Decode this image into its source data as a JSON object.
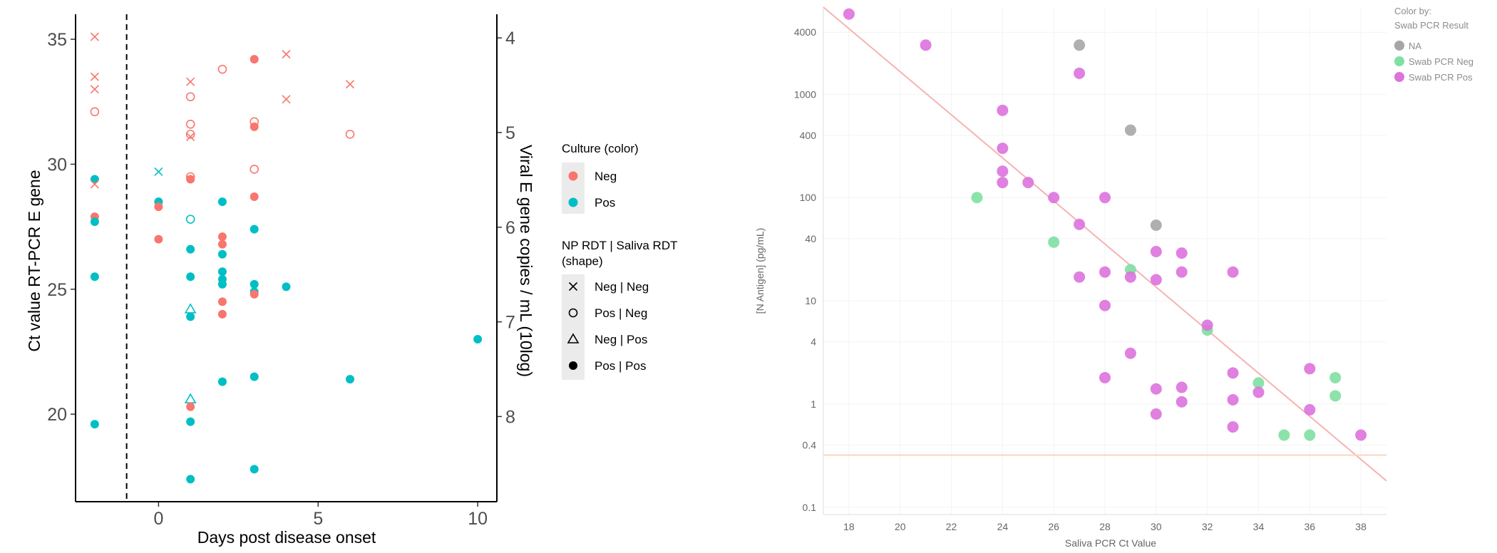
{
  "chart_data": [
    {
      "type": "scatter",
      "title": "",
      "xlabel": "Days post disease onset",
      "ylabel": "Ct value RT-PCR E gene",
      "y2label": "Viral E gene copies / mL (10log)",
      "xlim": [
        -2.6,
        10.6
      ],
      "ylim": [
        16.5,
        36
      ],
      "y2lim": [
        3.75,
        8.9
      ],
      "x_ticks": [
        "0",
        "5",
        "10"
      ],
      "x_tick_values": [
        0,
        5,
        10
      ],
      "y_ticks": [
        "20",
        "25",
        "30",
        "35"
      ],
      "y_tick_values": [
        20,
        25,
        30,
        35
      ],
      "y2_ticks": [
        "4",
        "5",
        "6",
        "7",
        "8"
      ],
      "y2_tick_values": [
        4,
        5,
        6,
        7,
        8
      ],
      "reference_line": {
        "x": -1,
        "style": "dashed"
      },
      "grid": false,
      "legend_position": "right",
      "colors": {
        "Neg": "#f8766d",
        "Pos": "#00bfc4"
      },
      "legend": {
        "color_title": "Culture (color)",
        "color_items": [
          {
            "label": "Neg",
            "color": "#f8766d"
          },
          {
            "label": "Pos",
            "color": "#00bfc4"
          }
        ],
        "shape_title_line1": "NP RDT | Saliva RDT",
        "shape_title_line2": "(shape)",
        "shape_items": [
          {
            "label": "Neg | Neg",
            "shape": "cross"
          },
          {
            "label": "Pos | Neg",
            "shape": "circle-open"
          },
          {
            "label": "Neg | Pos",
            "shape": "triangle-open"
          },
          {
            "label": "Pos | Pos",
            "shape": "circle-filled"
          }
        ]
      },
      "points": [
        {
          "x": -2,
          "y": 35.1,
          "culture": "Neg",
          "shape": "cross"
        },
        {
          "x": -2,
          "y": 33.5,
          "culture": "Neg",
          "shape": "cross"
        },
        {
          "x": -2,
          "y": 33.0,
          "culture": "Neg",
          "shape": "cross"
        },
        {
          "x": -2,
          "y": 32.1,
          "culture": "Neg",
          "shape": "circle-open"
        },
        {
          "x": -2,
          "y": 29.4,
          "culture": "Pos",
          "shape": "circle-filled"
        },
        {
          "x": -2,
          "y": 29.2,
          "culture": "Neg",
          "shape": "cross"
        },
        {
          "x": -2,
          "y": 27.9,
          "culture": "Neg",
          "shape": "circle-filled"
        },
        {
          "x": -2,
          "y": 27.7,
          "culture": "Pos",
          "shape": "circle-filled"
        },
        {
          "x": -2,
          "y": 25.5,
          "culture": "Pos",
          "shape": "circle-filled"
        },
        {
          "x": -2,
          "y": 19.6,
          "culture": "Pos",
          "shape": "circle-filled"
        },
        {
          "x": 0,
          "y": 29.7,
          "culture": "Pos",
          "shape": "cross"
        },
        {
          "x": 0,
          "y": 28.5,
          "culture": "Pos",
          "shape": "circle-filled"
        },
        {
          "x": 0,
          "y": 28.3,
          "culture": "Neg",
          "shape": "circle-filled"
        },
        {
          "x": 0,
          "y": 27.0,
          "culture": "Neg",
          "shape": "circle-filled"
        },
        {
          "x": 1,
          "y": 33.3,
          "culture": "Neg",
          "shape": "cross"
        },
        {
          "x": 1,
          "y": 32.7,
          "culture": "Neg",
          "shape": "circle-open"
        },
        {
          "x": 1,
          "y": 31.6,
          "culture": "Neg",
          "shape": "circle-open"
        },
        {
          "x": 1,
          "y": 31.2,
          "culture": "Neg",
          "shape": "circle-open"
        },
        {
          "x": 1,
          "y": 31.1,
          "culture": "Neg",
          "shape": "cross"
        },
        {
          "x": 1,
          "y": 29.5,
          "culture": "Neg",
          "shape": "circle-open"
        },
        {
          "x": 1,
          "y": 29.4,
          "culture": "Neg",
          "shape": "circle-filled"
        },
        {
          "x": 1,
          "y": 27.8,
          "culture": "Pos",
          "shape": "circle-open"
        },
        {
          "x": 1,
          "y": 26.6,
          "culture": "Pos",
          "shape": "circle-filled"
        },
        {
          "x": 1,
          "y": 25.5,
          "culture": "Pos",
          "shape": "circle-filled"
        },
        {
          "x": 1,
          "y": 24.2,
          "culture": "Pos",
          "shape": "triangle-open"
        },
        {
          "x": 1,
          "y": 23.9,
          "culture": "Pos",
          "shape": "circle-filled"
        },
        {
          "x": 1,
          "y": 20.6,
          "culture": "Pos",
          "shape": "triangle-open"
        },
        {
          "x": 1,
          "y": 20.3,
          "culture": "Neg",
          "shape": "circle-filled"
        },
        {
          "x": 1,
          "y": 19.7,
          "culture": "Pos",
          "shape": "circle-filled"
        },
        {
          "x": 1,
          "y": 17.4,
          "culture": "Pos",
          "shape": "circle-filled"
        },
        {
          "x": 2,
          "y": 33.8,
          "culture": "Neg",
          "shape": "circle-open"
        },
        {
          "x": 2,
          "y": 28.5,
          "culture": "Pos",
          "shape": "circle-filled"
        },
        {
          "x": 2,
          "y": 27.1,
          "culture": "Neg",
          "shape": "circle-filled"
        },
        {
          "x": 2,
          "y": 26.8,
          "culture": "Neg",
          "shape": "circle-filled"
        },
        {
          "x": 2,
          "y": 26.4,
          "culture": "Pos",
          "shape": "circle-filled"
        },
        {
          "x": 2,
          "y": 25.7,
          "culture": "Pos",
          "shape": "circle-filled"
        },
        {
          "x": 2,
          "y": 25.4,
          "culture": "Pos",
          "shape": "circle-filled"
        },
        {
          "x": 2,
          "y": 25.2,
          "culture": "Pos",
          "shape": "circle-filled"
        },
        {
          "x": 2,
          "y": 24.5,
          "culture": "Neg",
          "shape": "circle-filled"
        },
        {
          "x": 2,
          "y": 24.0,
          "culture": "Neg",
          "shape": "circle-filled"
        },
        {
          "x": 2,
          "y": 21.3,
          "culture": "Pos",
          "shape": "circle-filled"
        },
        {
          "x": 3,
          "y": 34.2,
          "culture": "Neg",
          "shape": "circle-filled"
        },
        {
          "x": 3,
          "y": 31.7,
          "culture": "Neg",
          "shape": "circle-open"
        },
        {
          "x": 3,
          "y": 31.5,
          "culture": "Neg",
          "shape": "circle-filled"
        },
        {
          "x": 3,
          "y": 29.8,
          "culture": "Neg",
          "shape": "circle-open"
        },
        {
          "x": 3,
          "y": 28.7,
          "culture": "Neg",
          "shape": "circle-filled"
        },
        {
          "x": 3,
          "y": 27.4,
          "culture": "Pos",
          "shape": "circle-filled"
        },
        {
          "x": 3,
          "y": 25.2,
          "culture": "Pos",
          "shape": "circle-filled"
        },
        {
          "x": 3,
          "y": 24.9,
          "culture": "Pos",
          "shape": "circle-filled"
        },
        {
          "x": 3,
          "y": 24.8,
          "culture": "Neg",
          "shape": "circle-filled"
        },
        {
          "x": 3,
          "y": 21.5,
          "culture": "Pos",
          "shape": "circle-filled"
        },
        {
          "x": 3,
          "y": 17.8,
          "culture": "Pos",
          "shape": "circle-filled"
        },
        {
          "x": 4,
          "y": 34.4,
          "culture": "Neg",
          "shape": "cross"
        },
        {
          "x": 4,
          "y": 32.6,
          "culture": "Neg",
          "shape": "cross"
        },
        {
          "x": 4,
          "y": 25.1,
          "culture": "Pos",
          "shape": "circle-filled"
        },
        {
          "x": 6,
          "y": 33.2,
          "culture": "Neg",
          "shape": "cross"
        },
        {
          "x": 6,
          "y": 31.2,
          "culture": "Neg",
          "shape": "circle-open"
        },
        {
          "x": 6,
          "y": 21.4,
          "culture": "Pos",
          "shape": "circle-filled"
        },
        {
          "x": 10,
          "y": 23.0,
          "culture": "Pos",
          "shape": "circle-filled"
        }
      ]
    },
    {
      "type": "scatter",
      "title": "",
      "xlabel": "Saliva PCR Ct Value",
      "ylabel": "[N Antigen] (pg/mL)",
      "y_scale": "log",
      "xlim": [
        17,
        39
      ],
      "ylim": [
        0.085,
        7000
      ],
      "x_ticks": [
        "18",
        "20",
        "22",
        "24",
        "26",
        "28",
        "30",
        "32",
        "34",
        "36",
        "38"
      ],
      "x_tick_values": [
        18,
        20,
        22,
        24,
        26,
        28,
        30,
        32,
        34,
        36,
        38
      ],
      "y_ticks": [
        "0.1",
        "0.4",
        "1",
        "4",
        "10",
        "40",
        "100",
        "400",
        "1000",
        "4000"
      ],
      "y_tick_values": [
        0.1,
        0.4,
        1,
        4,
        10,
        40,
        100,
        400,
        1000,
        4000
      ],
      "grid": true,
      "legend_position": "top-right",
      "legend": {
        "title_line1": "Color by:",
        "title_line2": "Swab PCR Result",
        "items": [
          {
            "label": "NA",
            "color": "#a6a6a6"
          },
          {
            "label": "Swab PCR Neg",
            "color": "#7ee0a1"
          },
          {
            "label": "Swab PCR Pos",
            "color": "#dd72dd"
          }
        ]
      },
      "fit_line": {
        "x1": 17,
        "y1": 7000,
        "x2": 39,
        "y2": 0.18
      },
      "threshold_line": {
        "y": 0.32
      },
      "series": [
        {
          "name": "NA",
          "color": "#a6a6a6",
          "points": [
            [
              27,
              3000
            ],
            [
              29,
              450
            ],
            [
              30,
              54
            ]
          ]
        },
        {
          "name": "Swab PCR Neg",
          "color": "#7ee0a1",
          "points": [
            [
              23,
              100
            ],
            [
              26,
              37
            ],
            [
              29,
              20
            ],
            [
              32,
              5.2
            ],
            [
              34,
              1.6
            ],
            [
              35,
              0.5
            ],
            [
              36,
              0.5
            ],
            [
              37,
              1.8
            ],
            [
              37,
              1.2
            ]
          ]
        },
        {
          "name": "Swab PCR Pos",
          "color": "#dd72dd",
          "points": [
            [
              18,
              6000
            ],
            [
              21,
              3000
            ],
            [
              27,
              1600
            ],
            [
              24,
              700
            ],
            [
              24,
              300
            ],
            [
              24,
              180
            ],
            [
              24,
              140
            ],
            [
              25,
              140
            ],
            [
              26,
              100
            ],
            [
              27,
              55
            ],
            [
              28,
              100
            ],
            [
              27,
              17
            ],
            [
              28,
              19
            ],
            [
              29,
              17
            ],
            [
              30,
              16
            ],
            [
              30,
              30
            ],
            [
              31,
              29
            ],
            [
              31,
              19
            ],
            [
              33,
              19
            ],
            [
              28,
              9
            ],
            [
              29,
              3.1
            ],
            [
              28,
              1.8
            ],
            [
              30,
              1.4
            ],
            [
              31,
              1.45
            ],
            [
              30,
              0.8
            ],
            [
              31,
              1.05
            ],
            [
              32,
              5.8
            ],
            [
              33,
              2.0
            ],
            [
              33,
              1.1
            ],
            [
              33,
              0.6
            ],
            [
              34,
              1.3
            ],
            [
              36,
              2.2
            ],
            [
              36,
              0.88
            ],
            [
              38,
              0.5
            ]
          ]
        }
      ]
    }
  ]
}
